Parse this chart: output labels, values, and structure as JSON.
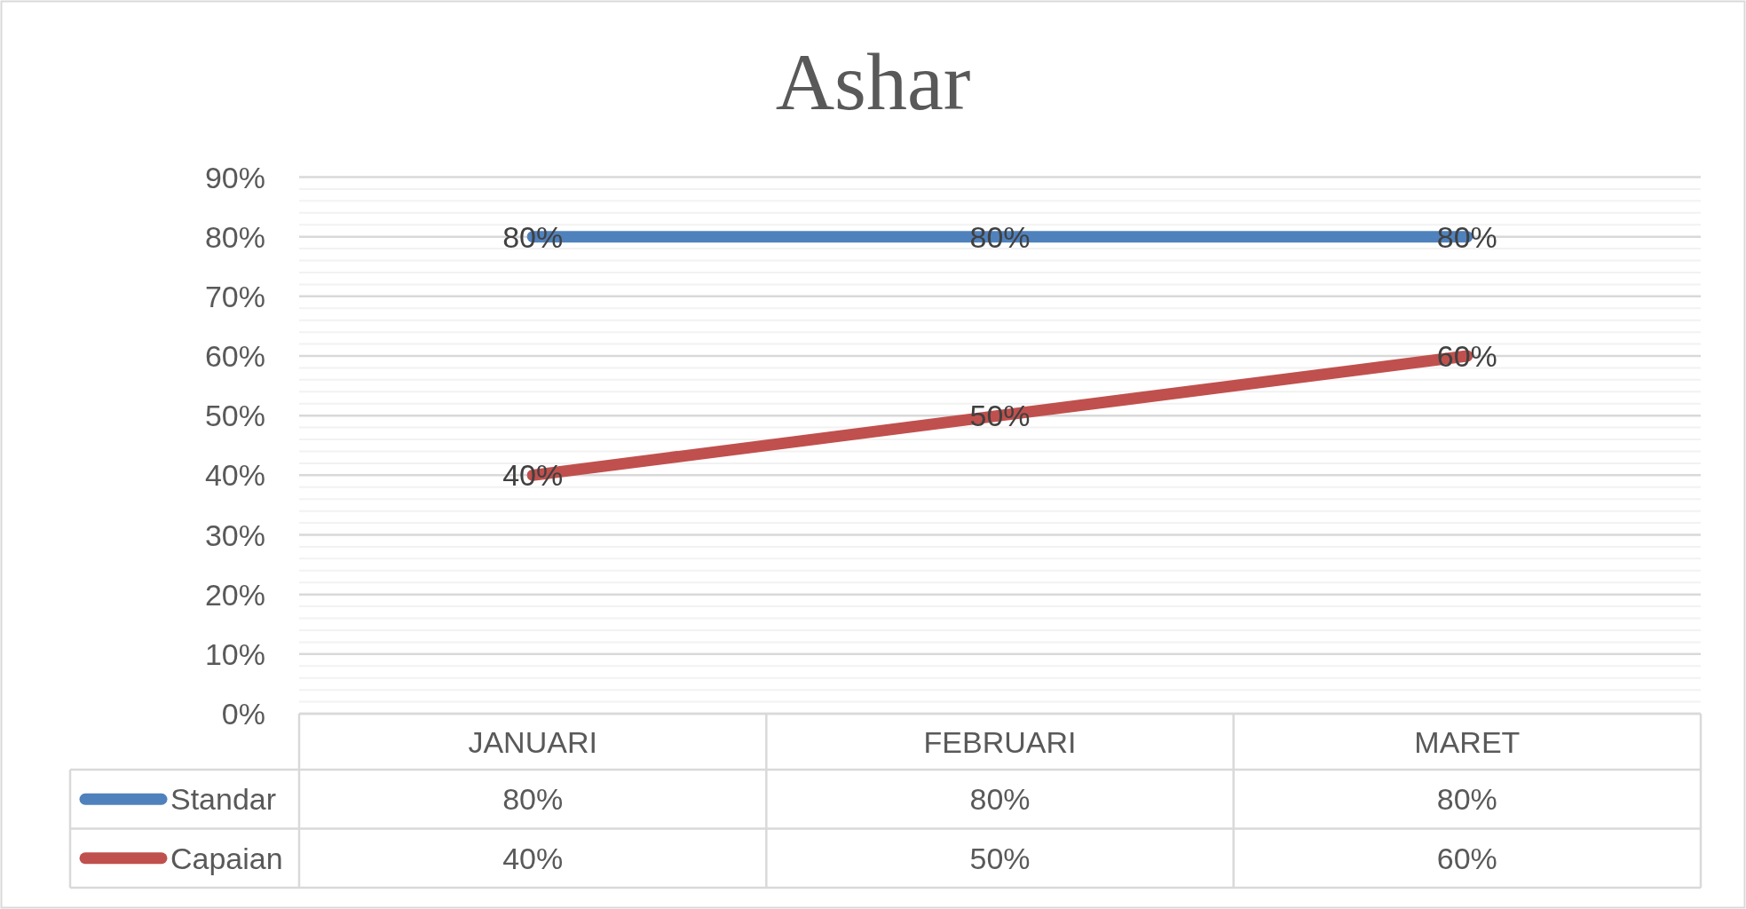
{
  "chart_data": {
    "type": "line",
    "title": "Ashar",
    "categories": [
      "JANUARI",
      "FEBRUARI",
      "MARET"
    ],
    "series": [
      {
        "name": "Standar",
        "color": "#4f81bd",
        "values": [
          80,
          80,
          80
        ],
        "value_labels": [
          "80%",
          "80%",
          "80%"
        ]
      },
      {
        "name": "Capaian",
        "color": "#c0504d",
        "values": [
          40,
          50,
          60
        ],
        "value_labels": [
          "40%",
          "50%",
          "60%"
        ]
      }
    ],
    "ylim": [
      0,
      90
    ],
    "yticks": [
      {
        "value": 0,
        "label": "0%"
      },
      {
        "value": 2,
        "label": null
      },
      {
        "value": 4,
        "label": null
      },
      {
        "value": 6,
        "label": null
      },
      {
        "value": 8,
        "label": null
      },
      {
        "value": 10,
        "label": "10%"
      },
      {
        "value": 12,
        "label": null
      },
      {
        "value": 14,
        "label": null
      },
      {
        "value": 16,
        "label": null
      },
      {
        "value": 18,
        "label": null
      },
      {
        "value": 20,
        "label": "20%"
      },
      {
        "value": 22,
        "label": null
      },
      {
        "value": 24,
        "label": null
      },
      {
        "value": 26,
        "label": null
      },
      {
        "value": 28,
        "label": null
      },
      {
        "value": 30,
        "label": "30%"
      },
      {
        "value": 32,
        "label": null
      },
      {
        "value": 34,
        "label": null
      },
      {
        "value": 36,
        "label": null
      },
      {
        "value": 38,
        "label": null
      },
      {
        "value": 40,
        "label": "40%"
      },
      {
        "value": 42,
        "label": null
      },
      {
        "value": 44,
        "label": null
      },
      {
        "value": 46,
        "label": null
      },
      {
        "value": 48,
        "label": null
      },
      {
        "value": 50,
        "label": "50%"
      },
      {
        "value": 52,
        "label": null
      },
      {
        "value": 54,
        "label": null
      },
      {
        "value": 56,
        "label": null
      },
      {
        "value": 58,
        "label": null
      },
      {
        "value": 60,
        "label": "60%"
      },
      {
        "value": 62,
        "label": null
      },
      {
        "value": 64,
        "label": null
      },
      {
        "value": 66,
        "label": null
      },
      {
        "value": 68,
        "label": null
      },
      {
        "value": 70,
        "label": "70%"
      },
      {
        "value": 72,
        "label": null
      },
      {
        "value": 74,
        "label": null
      },
      {
        "value": 76,
        "label": null
      },
      {
        "value": 78,
        "label": null
      },
      {
        "value": 80,
        "label": "80%"
      },
      {
        "value": 82,
        "label": null
      },
      {
        "value": 84,
        "label": null
      },
      {
        "value": 86,
        "label": null
      },
      {
        "value": 88,
        "label": null
      },
      {
        "value": 90,
        "label": "90%"
      }
    ],
    "grid": "y",
    "legend": "bottom",
    "line_style": "solid"
  }
}
